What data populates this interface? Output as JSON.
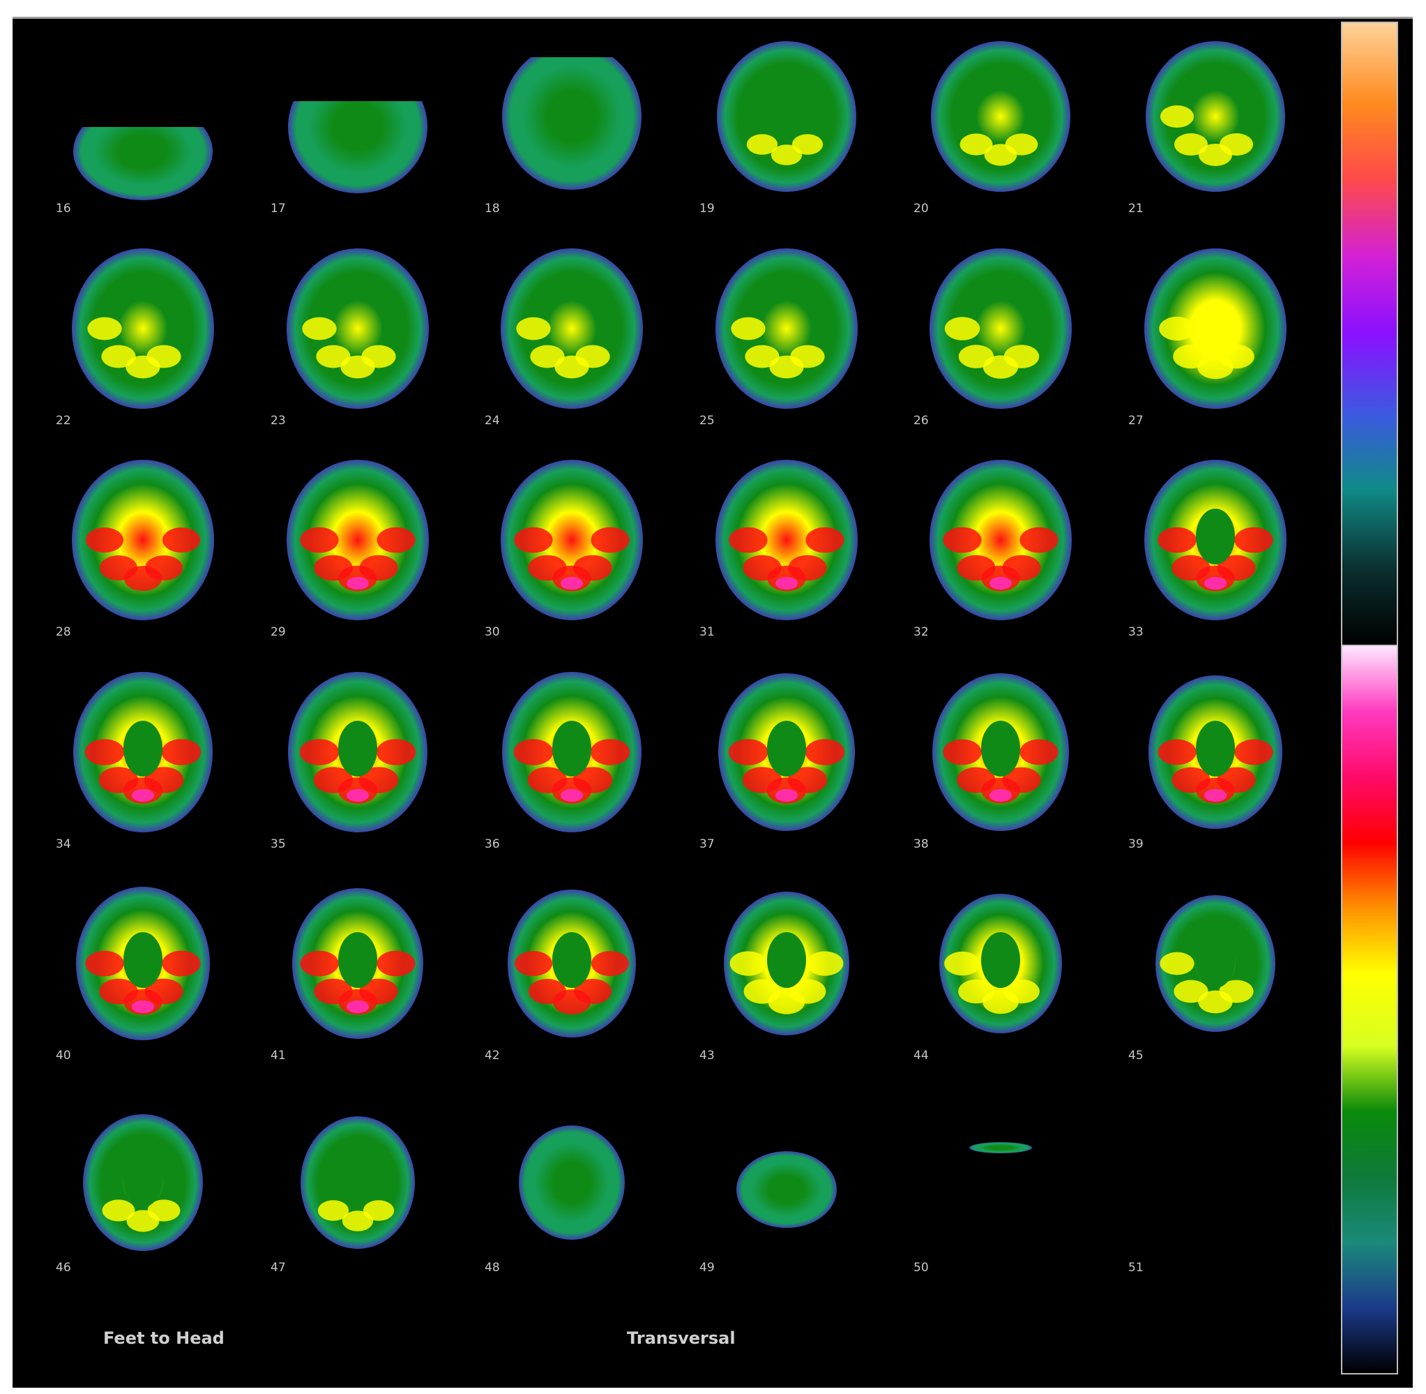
{
  "viewer": {
    "footer_direction": "Feet to Head",
    "footer_plane": "Transversal"
  },
  "palette": {
    "background": "#3a44ad",
    "low": "#17a05a",
    "mid": "#0f8a16",
    "high": "#ffff00",
    "hot": "#ff1010",
    "peak": "#ff2ea8"
  },
  "colorbars": {
    "top": [
      "#ffd29a",
      "#ff8a1e",
      "#ff4a4a",
      "#d020d8",
      "#8a10ff",
      "#3b5ae0",
      "#0f8a86",
      "#0b2e2e",
      "#000000"
    ],
    "bottom": [
      "#ffe6ff",
      "#ff3ac0",
      "#ff0a6a",
      "#ff0000",
      "#ff9000",
      "#ffff00",
      "#d8ff20",
      "#0a8a0a",
      "#0e7a3a",
      "#1b8a7a",
      "#1b3a8a",
      "#000000"
    ]
  },
  "slices": [
    {
      "label": "16"
    },
    {
      "label": "17"
    },
    {
      "label": "18"
    },
    {
      "label": "19"
    },
    {
      "label": "20"
    },
    {
      "label": "21"
    },
    {
      "label": "22"
    },
    {
      "label": "23"
    },
    {
      "label": "24"
    },
    {
      "label": "25"
    },
    {
      "label": "26"
    },
    {
      "label": "27"
    },
    {
      "label": "28"
    },
    {
      "label": "29"
    },
    {
      "label": "30"
    },
    {
      "label": "31"
    },
    {
      "label": "32"
    },
    {
      "label": "33"
    },
    {
      "label": "34"
    },
    {
      "label": "35"
    },
    {
      "label": "36"
    },
    {
      "label": "37"
    },
    {
      "label": "38"
    },
    {
      "label": "39"
    },
    {
      "label": "40"
    },
    {
      "label": "41"
    },
    {
      "label": "42"
    },
    {
      "label": "43"
    },
    {
      "label": "44"
    },
    {
      "label": "45"
    },
    {
      "label": "46"
    },
    {
      "label": "47"
    },
    {
      "label": "48"
    },
    {
      "label": "49"
    },
    {
      "label": "50"
    },
    {
      "label": "51"
    }
  ]
}
